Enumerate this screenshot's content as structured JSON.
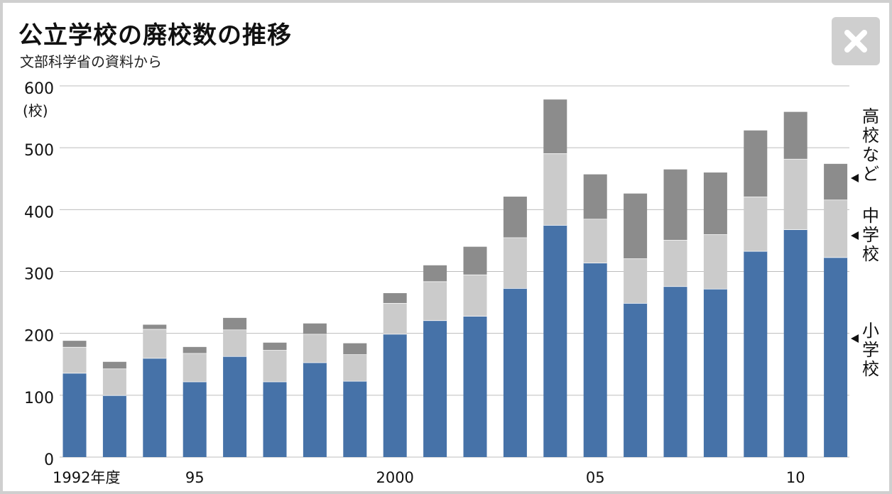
{
  "header": {
    "title": "公立学校の廃校数の推移",
    "subtitle": "文部科学省の資料から"
  },
  "close_button": {
    "icon": "close-icon"
  },
  "colors": {
    "elementary": "#4672a8",
    "junior_high": "#cbcbcb",
    "high_school_etc": "#8c8c8c",
    "gridline": "#bdbdbd"
  },
  "chart_data": {
    "type": "bar",
    "stacked": true,
    "title": "公立学校の廃校数の推移",
    "subtitle": "文部科学省の資料から",
    "ylabel": "(校)",
    "ylim": [
      0,
      600
    ],
    "yticks": [
      0,
      100,
      200,
      300,
      400,
      500,
      600
    ],
    "grid": true,
    "x": [
      1992,
      1993,
      1994,
      1995,
      1996,
      1997,
      1998,
      1999,
      2000,
      2001,
      2002,
      2003,
      2004,
      2005,
      2006,
      2007,
      2008,
      2009,
      2010,
      2011
    ],
    "xtick_labels": [
      {
        "year": 1992,
        "label": "1992年度"
      },
      {
        "year": 1995,
        "label": "95"
      },
      {
        "year": 2000,
        "label": "2000"
      },
      {
        "year": 2005,
        "label": "05"
      },
      {
        "year": 2010,
        "label": "10"
      }
    ],
    "series": [
      {
        "name": "小学校",
        "color": "#4672a8",
        "values": [
          136,
          100,
          160,
          122,
          163,
          122,
          153,
          123,
          199,
          221,
          228,
          273,
          375,
          314,
          249,
          276,
          272,
          333,
          368,
          323
        ]
      },
      {
        "name": "中学校",
        "color": "#cbcbcb",
        "values": [
          42,
          43,
          47,
          46,
          43,
          51,
          46,
          43,
          50,
          63,
          67,
          82,
          116,
          71,
          72,
          75,
          88,
          88,
          114,
          93
        ]
      },
      {
        "name": "高校など",
        "color": "#8c8c8c",
        "values": [
          10,
          11,
          7,
          10,
          19,
          12,
          17,
          18,
          16,
          26,
          45,
          66,
          87,
          72,
          105,
          114,
          100,
          107,
          76,
          58
        ]
      }
    ],
    "legend_placement": "right, aligned to last bar"
  }
}
